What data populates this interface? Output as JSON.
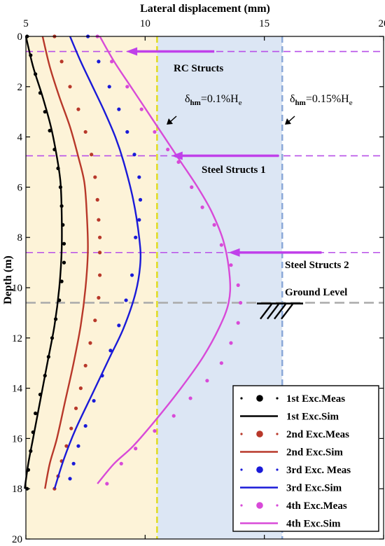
{
  "chart_data": {
    "type": "line",
    "xlabel": "Lateral displacement (mm)",
    "ylabel": "Depth (m)",
    "xlim": [
      5,
      20
    ],
    "ylim": [
      0,
      20
    ],
    "y_inverted": true,
    "x_axis_position": "top",
    "x_ticks": [
      5,
      10,
      15,
      20
    ],
    "y_ticks": [
      0,
      2,
      4,
      6,
      8,
      10,
      12,
      14,
      16,
      18,
      20
    ],
    "legend_position": "bottom-right",
    "bands": [
      {
        "x_from": 5,
        "x_to": 10.5,
        "color": "#fdf3d8"
      },
      {
        "x_from": 10.5,
        "x_to": 15.75,
        "color": "#dce6f4"
      }
    ],
    "threshold_lines": [
      {
        "x": 10.5,
        "label_main": "δ",
        "label_sub": "hm",
        "label_rest": "=0.1%H",
        "label_sub2": "e",
        "color": "#e0dc20"
      },
      {
        "x": 15.75,
        "label_main": "δ",
        "label_sub": "hm",
        "label_rest": "=0.15%H",
        "label_sub2": "e",
        "color": "#8aa8d8"
      }
    ],
    "struts": [
      {
        "depth": 0.6,
        "label": "RC Structs",
        "arrow_x_from": 12.9,
        "arrow_x_to": 9.2
      },
      {
        "depth": 4.75,
        "label": "Steel Structs 1",
        "arrow_x_from": 15.6,
        "arrow_x_to": 11.1
      },
      {
        "depth": 8.6,
        "label": "Steel Structs 2",
        "arrow_x_from": 17.4,
        "arrow_x_to": 13.5
      }
    ],
    "ground_level": {
      "depth": 10.6,
      "label": "Ground Level"
    },
    "series": [
      {
        "name": "1st Exc.Meas",
        "style": "dots",
        "color": "#000000",
        "x": [
          5.05,
          5.2,
          5.4,
          5.6,
          5.8,
          6.0,
          6.2,
          6.35,
          6.45,
          6.5,
          6.55,
          6.6,
          6.6,
          6.5,
          6.4,
          6.25,
          6.1,
          5.95,
          5.8,
          5.6,
          5.4,
          5.3,
          5.2,
          5.1,
          5.05
        ],
        "y": [
          0,
          0.75,
          1.5,
          2.25,
          3.0,
          3.75,
          4.5,
          5.25,
          6.0,
          6.75,
          7.5,
          8.25,
          9.0,
          9.75,
          10.5,
          11.25,
          12.0,
          12.75,
          13.5,
          14.25,
          15.0,
          15.75,
          16.5,
          17.25,
          18.0
        ]
      },
      {
        "name": "1st Exc.Sim",
        "style": "line",
        "color": "#000000",
        "x": [
          5.0,
          5.3,
          5.7,
          6.05,
          6.3,
          6.45,
          6.5,
          6.5,
          6.4,
          6.2,
          5.9,
          5.6,
          5.3,
          5.1,
          4.95
        ],
        "y": [
          0,
          1.2,
          2.4,
          3.6,
          4.8,
          5.8,
          7.0,
          8.5,
          10.0,
          11.5,
          13.0,
          14.5,
          16.0,
          17.0,
          18.0
        ]
      },
      {
        "name": "2nd Exc.Meas",
        "style": "dots",
        "color": "#b8382a",
        "x": [
          6.2,
          6.5,
          6.85,
          7.2,
          7.5,
          7.75,
          7.9,
          8.0,
          8.05,
          8.1,
          8.1,
          8.1,
          8.05,
          7.9,
          7.7,
          7.5,
          7.3,
          7.1,
          6.9,
          6.7,
          6.5,
          6.35,
          6.2
        ],
        "y": [
          0,
          1.0,
          2.0,
          2.9,
          3.8,
          4.7,
          5.6,
          6.5,
          7.3,
          8.0,
          8.6,
          9.5,
          10.4,
          11.3,
          12.2,
          13.1,
          14.0,
          14.8,
          15.6,
          16.3,
          16.9,
          17.5,
          18.0
        ]
      },
      {
        "name": "2nd Exc.Sim",
        "style": "line",
        "color": "#b8382a",
        "x": [
          5.7,
          6.0,
          6.4,
          6.85,
          7.2,
          7.45,
          7.55,
          7.6,
          7.5,
          7.3,
          7.0,
          6.65,
          6.3,
          6.0,
          5.8
        ],
        "y": [
          0,
          1.2,
          2.4,
          3.6,
          4.8,
          5.8,
          7.0,
          8.5,
          10.0,
          11.5,
          13.0,
          14.5,
          16.0,
          17.0,
          18.0
        ]
      },
      {
        "name": "3rd Exc. Meas",
        "style": "dots",
        "color": "#1a1ad8",
        "x": [
          7.6,
          8.05,
          8.5,
          8.9,
          9.25,
          9.55,
          9.75,
          9.8,
          9.75,
          9.6,
          9.45,
          9.2,
          8.9,
          8.55,
          8.2,
          7.85,
          7.5,
          7.2,
          7.0,
          6.85
        ],
        "y": [
          0,
          1.0,
          2.0,
          2.9,
          3.8,
          4.7,
          5.6,
          6.5,
          7.3,
          8.0,
          9.5,
          10.5,
          11.5,
          12.5,
          13.5,
          14.5,
          15.5,
          16.3,
          17.0,
          17.6
        ]
      },
      {
        "name": "3rd Exc.Sim",
        "style": "line",
        "color": "#1a1ad8",
        "x": [
          6.85,
          7.3,
          7.8,
          8.3,
          8.75,
          9.1,
          9.5,
          9.75,
          9.8,
          9.6,
          9.1,
          8.5,
          7.8,
          7.1,
          6.6,
          6.2
        ],
        "y": [
          0,
          1.0,
          2.0,
          3.0,
          4.0,
          5.0,
          6.5,
          8.0,
          9.0,
          10.2,
          11.6,
          12.8,
          14.2,
          15.6,
          16.8,
          18.0
        ]
      },
      {
        "name": "4th Exc.Meas",
        "style": "dots",
        "color": "#d84ad8",
        "x": [
          8.0,
          8.6,
          9.25,
          9.85,
          10.4,
          10.95,
          11.4,
          11.95,
          12.4,
          12.9,
          13.2,
          13.6,
          13.9,
          14.0,
          13.9,
          13.6,
          13.2,
          12.6,
          11.9,
          11.2,
          10.4,
          9.6,
          9.0,
          8.4
        ],
        "y": [
          0,
          1.0,
          2.0,
          2.9,
          3.8,
          4.5,
          5.0,
          6.0,
          6.8,
          7.5,
          8.3,
          9.1,
          9.9,
          10.6,
          11.4,
          12.2,
          13.0,
          13.7,
          14.4,
          15.1,
          15.7,
          16.4,
          17.0,
          17.8
        ]
      },
      {
        "name": "4th Exc.Sim",
        "style": "line",
        "color": "#d84ad8",
        "x": [
          8.1,
          8.7,
          9.4,
          10.1,
          10.8,
          11.5,
          12.2,
          12.8,
          13.3,
          13.55,
          13.5,
          13.1,
          12.4,
          11.5,
          10.5,
          9.5,
          8.7,
          8.0
        ],
        "y": [
          0,
          1.0,
          2.0,
          3.0,
          4.0,
          5.0,
          6.0,
          7.0,
          8.2,
          9.6,
          10.6,
          11.6,
          12.8,
          14.0,
          15.2,
          16.3,
          17.0,
          17.8
        ]
      }
    ]
  }
}
